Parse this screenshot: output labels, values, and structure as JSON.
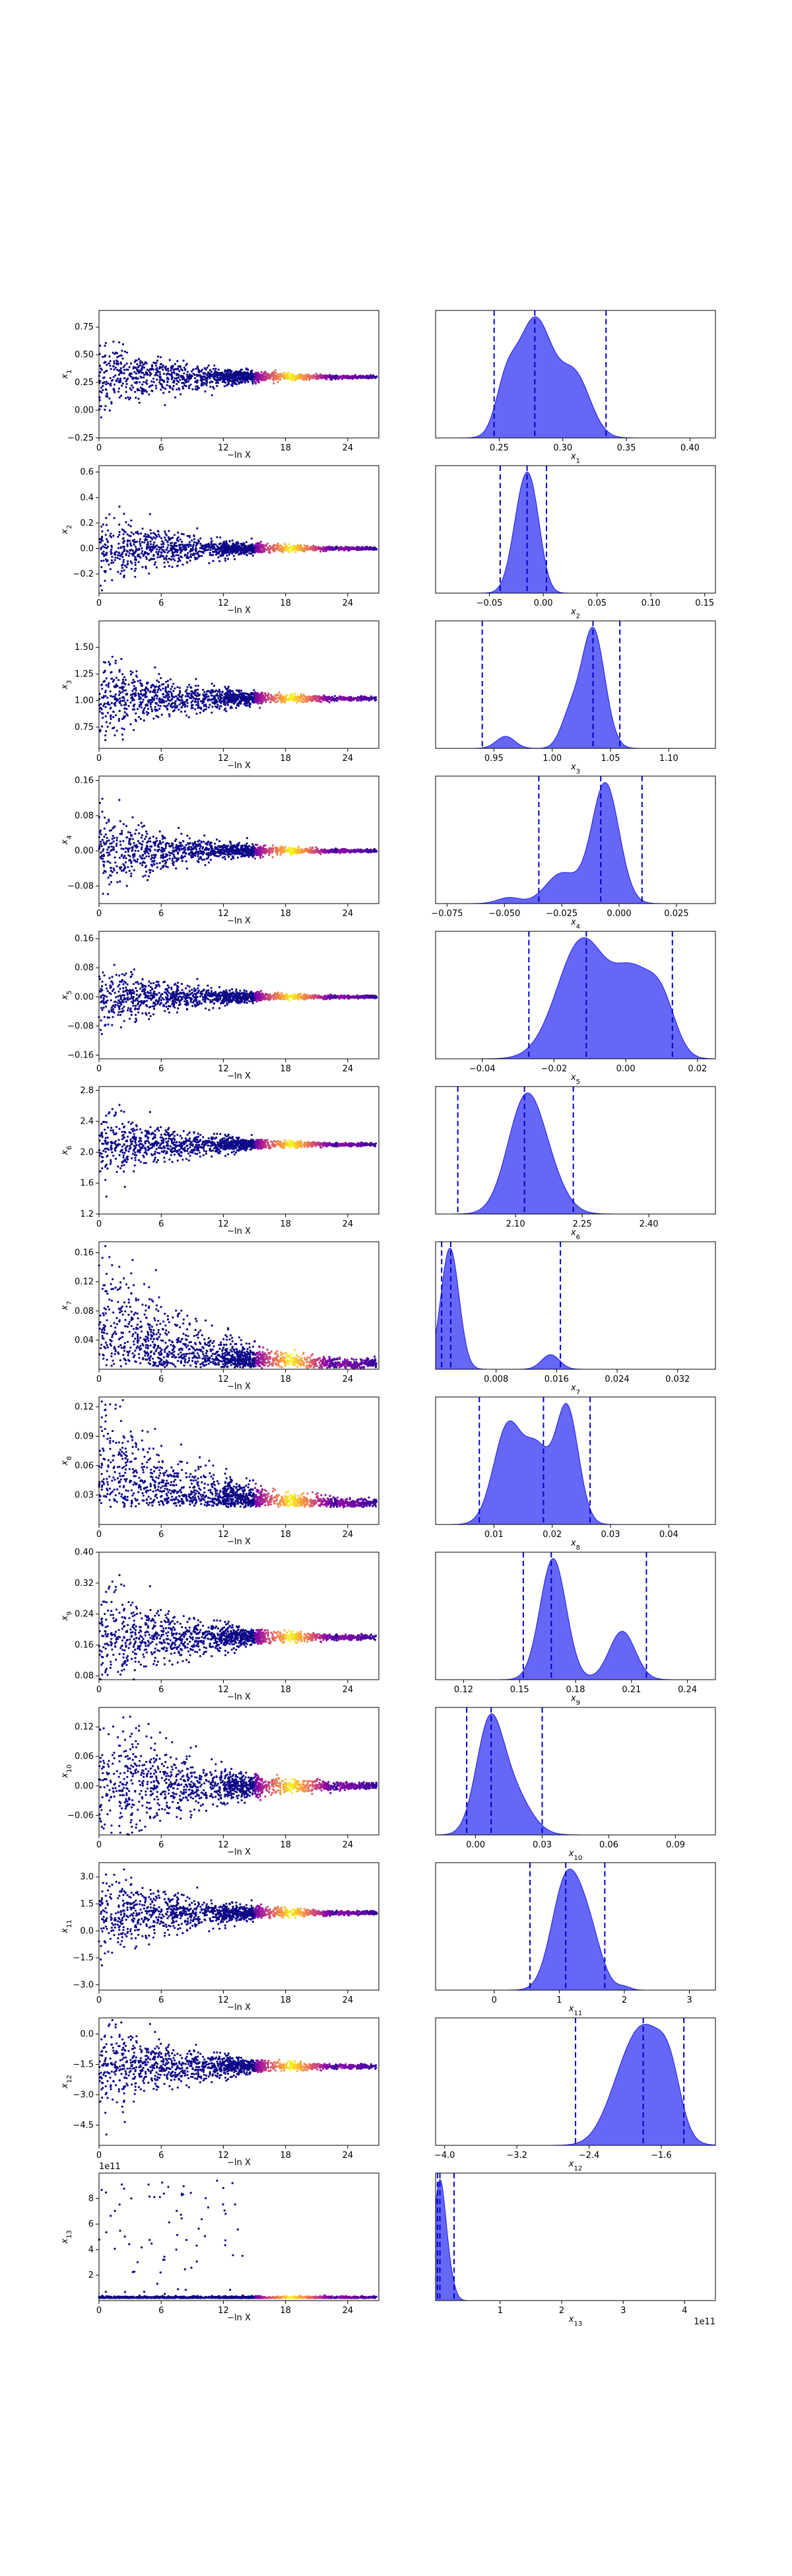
{
  "figure": {
    "colors": {
      "scatter_low": "#0d0887",
      "scatter_mid": "#cc4778",
      "scatter_high": "#f0f921",
      "kde_fill": "#5557f5",
      "kde_line": "#1a1aef",
      "quantile_line": "#0000cc"
    }
  },
  "chart_data": [
    {
      "type": "scatter",
      "ylabel": "x1",
      "xlabel": "−ln X",
      "xticks": [
        "0",
        "6",
        "12",
        "18",
        "24"
      ],
      "yticks": [
        "−0.25",
        "0.00",
        "0.25",
        "0.50",
        "0.75"
      ],
      "ylim": [
        -0.25,
        0.9
      ],
      "xlim": [
        0,
        27
      ],
      "y_center": 0.3,
      "y_spread": 0.5,
      "shape": "flat"
    },
    {
      "type": "area",
      "xlabel": "x1",
      "xticks": [
        "0.25",
        "0.30",
        "0.35",
        "0.40"
      ],
      "xlim": [
        0.2,
        0.42
      ],
      "quantiles": [
        0.246,
        0.278,
        0.334
      ],
      "peaks": [
        [
          0.278,
          1.0,
          0.014
        ],
        [
          0.31,
          0.5,
          0.012
        ],
        [
          0.255,
          0.35,
          0.008
        ]
      ]
    },
    {
      "type": "scatter",
      "ylabel": "x2",
      "xlabel": "−ln X",
      "xticks": [
        "0",
        "6",
        "12",
        "18",
        "24"
      ],
      "yticks": [
        "−0.2",
        "0.0",
        "0.2",
        "0.4",
        "0.6"
      ],
      "ylim": [
        -0.35,
        0.65
      ],
      "xlim": [
        0,
        27
      ],
      "y_center": 0.0,
      "y_spread": 0.45,
      "shape": "flat"
    },
    {
      "type": "area",
      "xlabel": "x2",
      "xticks": [
        "−0.05",
        "0.00",
        "0.05",
        "0.10",
        "0.15"
      ],
      "xlim": [
        -0.1,
        0.16
      ],
      "quantiles": [
        -0.04,
        -0.015,
        0.003
      ],
      "peaks": [
        [
          -0.018,
          1.0,
          0.01
        ],
        [
          -0.008,
          0.4,
          0.008
        ]
      ]
    },
    {
      "type": "scatter",
      "ylabel": "x3",
      "xlabel": "−ln X",
      "xticks": [
        "0",
        "6",
        "12",
        "18",
        "24"
      ],
      "yticks": [
        "0.75",
        "1.00",
        "1.25",
        "1.50"
      ],
      "ylim": [
        0.55,
        1.75
      ],
      "xlim": [
        0,
        27
      ],
      "y_center": 1.02,
      "y_spread": 0.6,
      "shape": "flat"
    },
    {
      "type": "area",
      "xlabel": "x3",
      "xticks": [
        "0.95",
        "1.00",
        "1.05",
        "1.10"
      ],
      "xlim": [
        0.9,
        1.14
      ],
      "quantiles": [
        0.94,
        1.035,
        1.058
      ],
      "peaks": [
        [
          1.035,
          1.0,
          0.01
        ],
        [
          0.96,
          0.1,
          0.008
        ],
        [
          1.015,
          0.25,
          0.008
        ]
      ]
    },
    {
      "type": "scatter",
      "ylabel": "x4",
      "xlabel": "−ln X",
      "xticks": [
        "0",
        "6",
        "12",
        "18",
        "24"
      ],
      "yticks": [
        "−0.08",
        "0.00",
        "0.08",
        "0.16"
      ],
      "ylim": [
        -0.12,
        0.17
      ],
      "xlim": [
        0,
        27
      ],
      "y_center": 0.0,
      "y_spread": 0.13,
      "shape": "flat"
    },
    {
      "type": "area",
      "xlabel": "x4",
      "xticks": [
        "−0.075",
        "−0.050",
        "−0.025",
        "0.000",
        "0.025"
      ],
      "xlim": [
        -0.08,
        0.042
      ],
      "quantiles": [
        -0.035,
        -0.008,
        0.01
      ],
      "peaks": [
        [
          -0.006,
          1.0,
          0.006
        ],
        [
          -0.025,
          0.25,
          0.007
        ],
        [
          -0.048,
          0.05,
          0.005
        ]
      ]
    },
    {
      "type": "scatter",
      "ylabel": "x5",
      "xlabel": "−ln X",
      "xticks": [
        "0",
        "6",
        "12",
        "18",
        "24"
      ],
      "yticks": [
        "−0.16",
        "−0.08",
        "0.00",
        "0.08",
        "0.16"
      ],
      "ylim": [
        -0.17,
        0.18
      ],
      "xlim": [
        0,
        27
      ],
      "y_center": 0.0,
      "y_spread": 0.14,
      "shape": "flat"
    },
    {
      "type": "area",
      "xlabel": "x5",
      "xticks": [
        "−0.04",
        "−0.02",
        "0.00",
        "0.02"
      ],
      "xlim": [
        -0.053,
        0.025
      ],
      "quantiles": [
        -0.027,
        -0.011,
        0.013
      ],
      "peaks": [
        [
          -0.012,
          1.0,
          0.007
        ],
        [
          0.002,
          0.6,
          0.005
        ],
        [
          0.01,
          0.45,
          0.004
        ]
      ]
    },
    {
      "type": "scatter",
      "ylabel": "x6",
      "xlabel": "−ln X",
      "xticks": [
        "0",
        "6",
        "12",
        "18",
        "24"
      ],
      "yticks": [
        "1.2",
        "1.6",
        "2.0",
        "2.4",
        "2.8"
      ],
      "ylim": [
        1.2,
        2.85
      ],
      "xlim": [
        0,
        27
      ],
      "y_center": 2.1,
      "y_spread": 0.7,
      "shape": "flat"
    },
    {
      "type": "area",
      "xlabel": "x6",
      "xticks": [
        "2.10",
        "2.25",
        "2.40"
      ],
      "xlim": [
        1.92,
        2.55
      ],
      "quantiles": [
        1.97,
        2.12,
        2.23
      ],
      "peaks": [
        [
          2.12,
          1.0,
          0.04
        ],
        [
          2.17,
          0.3,
          0.04
        ]
      ]
    },
    {
      "type": "scatter",
      "ylabel": "x7",
      "xlabel": "−ln X",
      "xticks": [
        "0",
        "6",
        "12",
        "18",
        "24"
      ],
      "yticks": [
        "0.04",
        "0.08",
        "0.12",
        "0.16"
      ],
      "ylim": [
        0,
        0.175
      ],
      "xlim": [
        0,
        27
      ],
      "y_center": 0.005,
      "y_spread": 0.16,
      "shape": "decay"
    },
    {
      "type": "area",
      "xlabel": "x7",
      "xticks": [
        "0.008",
        "0.016",
        "0.024",
        "0.032"
      ],
      "xlim": [
        0,
        0.037
      ],
      "quantiles": [
        0.0008,
        0.002,
        0.0165
      ],
      "peaks": [
        [
          0.0019,
          1.0,
          0.0012
        ],
        [
          0.0152,
          0.12,
          0.0012
        ]
      ]
    },
    {
      "type": "scatter",
      "ylabel": "x8",
      "xlabel": "−ln X",
      "xticks": [
        "0",
        "6",
        "12",
        "18",
        "24"
      ],
      "yticks": [
        "0.03",
        "0.06",
        "0.09",
        "0.12"
      ],
      "ylim": [
        0,
        0.13
      ],
      "xlim": [
        0,
        27
      ],
      "y_center": 0.02,
      "y_spread": 0.11,
      "shape": "decay"
    },
    {
      "type": "area",
      "xlabel": "x8",
      "xticks": [
        "0.01",
        "0.02",
        "0.03",
        "0.04"
      ],
      "xlim": [
        0.0,
        0.048
      ],
      "quantiles": [
        0.0075,
        0.0185,
        0.0265
      ],
      "peaks": [
        [
          0.0125,
          0.85,
          0.0025
        ],
        [
          0.0225,
          1.0,
          0.002
        ],
        [
          0.0175,
          0.55,
          0.002
        ]
      ]
    },
    {
      "type": "scatter",
      "ylabel": "x9",
      "xlabel": "−ln X",
      "xticks": [
        "0",
        "6",
        "12",
        "18",
        "24"
      ],
      "yticks": [
        "0.08",
        "0.16",
        "0.24",
        "0.32",
        "0.40"
      ],
      "ylim": [
        0.07,
        0.4
      ],
      "xlim": [
        0,
        27
      ],
      "y_center": 0.18,
      "y_spread": 0.22,
      "shape": "flat"
    },
    {
      "type": "area",
      "xlabel": "x9",
      "xticks": [
        "0.12",
        "0.15",
        "0.18",
        "0.21",
        "0.24"
      ],
      "xlim": [
        0.105,
        0.255
      ],
      "quantiles": [
        0.152,
        0.167,
        0.218
      ],
      "peaks": [
        [
          0.168,
          1.0,
          0.007
        ],
        [
          0.205,
          0.4,
          0.007
        ]
      ]
    },
    {
      "type": "scatter",
      "ylabel": "x10",
      "xlabel": "−ln X",
      "xticks": [
        "0",
        "6",
        "12",
        "18",
        "24"
      ],
      "yticks": [
        "−0.06",
        "0.00",
        "0.06",
        "0.12"
      ],
      "ylim": [
        -0.1,
        0.16
      ],
      "xlim": [
        0,
        27
      ],
      "y_center": 0.0,
      "y_spread": 0.17,
      "shape": "decay"
    },
    {
      "type": "area",
      "xlabel": "x10",
      "xticks": [
        "0.00",
        "0.03",
        "0.06",
        "0.09"
      ],
      "xlim": [
        -0.018,
        0.108
      ],
      "quantiles": [
        -0.004,
        0.007,
        0.03
      ],
      "peaks": [
        [
          0.006,
          1.0,
          0.006
        ],
        [
          0.016,
          0.45,
          0.008
        ]
      ]
    },
    {
      "type": "scatter",
      "ylabel": "x11",
      "xlabel": "−ln X",
      "xticks": [
        "0",
        "6",
        "12",
        "18",
        "24"
      ],
      "yticks": [
        "−3.0",
        "−1.5",
        "0.0",
        "1.5",
        "3.0"
      ],
      "ylim": [
        -3.3,
        3.8
      ],
      "xlim": [
        0,
        27
      ],
      "y_center": 1.0,
      "y_spread": 4.0,
      "shape": "flat"
    },
    {
      "type": "area",
      "xlabel": "x11",
      "xticks": [
        "0",
        "1",
        "2",
        "3"
      ],
      "xlim": [
        -0.9,
        3.4
      ],
      "quantiles": [
        0.55,
        1.1,
        1.7
      ],
      "peaks": [
        [
          1.1,
          1.0,
          0.22
        ],
        [
          1.45,
          0.5,
          0.2
        ],
        [
          2.0,
          0.03,
          0.1
        ]
      ]
    },
    {
      "type": "scatter",
      "ylabel": "x12",
      "xlabel": "−ln X",
      "xticks": [
        "0",
        "6",
        "12",
        "18",
        "24"
      ],
      "yticks": [
        "−4.5",
        "−3.0",
        "−1.5",
        "0.0"
      ],
      "ylim": [
        -5.5,
        0.8
      ],
      "xlim": [
        0,
        27
      ],
      "y_center": -1.6,
      "y_spread": 3.5,
      "shape": "flat"
    },
    {
      "type": "area",
      "xlabel": "x12",
      "xticks": [
        "−4.0",
        "−3.2",
        "−2.4",
        "−1.6"
      ],
      "xlim": [
        -4.1,
        -1.0
      ],
      "quantiles": [
        -2.55,
        -1.8,
        -1.35
      ],
      "peaks": [
        [
          -1.75,
          1.0,
          0.22
        ],
        [
          -2.05,
          0.4,
          0.2
        ],
        [
          -1.5,
          0.4,
          0.12
        ]
      ]
    },
    {
      "type": "scatter",
      "ylabel": "x13",
      "xlabel": "−ln X",
      "xticks": [
        "0",
        "6",
        "12",
        "18",
        "24"
      ],
      "yticks": [
        "2",
        "4",
        "6",
        "8"
      ],
      "ylim": [
        0,
        10
      ],
      "xlim": [
        0,
        27
      ],
      "y_center": 0.2,
      "y_spread": 9.5,
      "shape": "sparse",
      "offset_text": "1e11"
    },
    {
      "type": "area",
      "xlabel": "x13",
      "xticks": [
        "1",
        "2",
        "3",
        "4"
      ],
      "xlim": [
        -0.05,
        4.5
      ],
      "quantiles": [
        -0.02,
        0.02,
        0.25
      ],
      "peaks": [
        [
          0.02,
          1.0,
          0.1
        ],
        [
          0.2,
          0.1,
          0.08
        ]
      ],
      "offset_text": "1e11"
    }
  ]
}
